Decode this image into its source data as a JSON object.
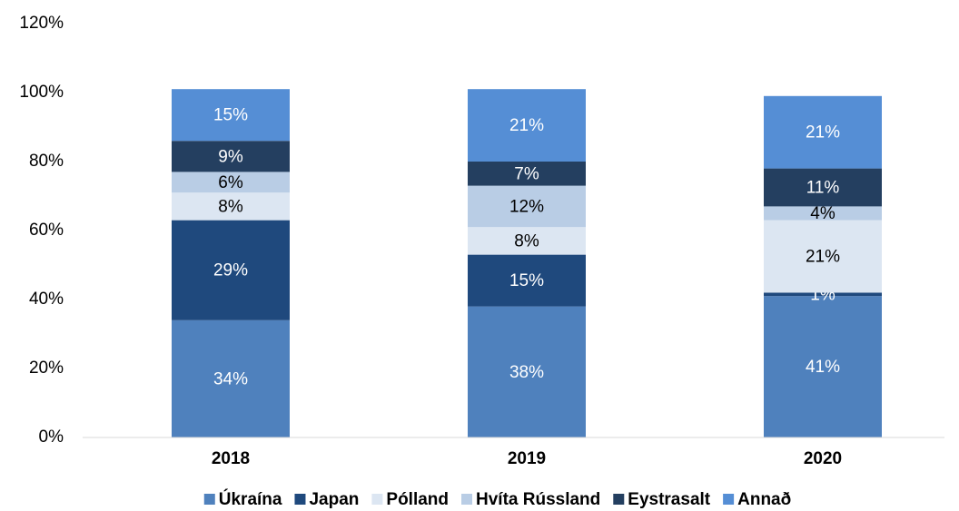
{
  "chart_data": {
    "type": "stacked_bar",
    "categories": [
      "2018",
      "2019",
      "2020"
    ],
    "series": [
      {
        "name": "Úkraína",
        "color": "#4f81bd",
        "values": [
          34,
          38,
          41
        ],
        "value_labels": [
          "34%",
          "38%",
          "41%"
        ]
      },
      {
        "name": "Japan",
        "color": "#1f497d",
        "values": [
          29,
          15,
          1
        ],
        "value_labels": [
          "29%",
          "15%",
          "1%"
        ]
      },
      {
        "name": "Pólland",
        "color": "#dce6f2",
        "values": [
          8,
          8,
          21
        ],
        "value_labels": [
          "8%",
          "8%",
          "21%"
        ]
      },
      {
        "name": "Hvíta Rússland",
        "color": "#b9cde5",
        "values": [
          6,
          12,
          4
        ],
        "value_labels": [
          "6%",
          "12%",
          "4%"
        ]
      },
      {
        "name": "Eystrasalt",
        "color": "#243f60",
        "values": [
          9,
          7,
          11
        ],
        "value_labels": [
          "9%",
          "7%",
          "11%"
        ]
      },
      {
        "name": "Annað",
        "color": "#558ed5",
        "values": [
          15,
          21,
          21
        ],
        "value_labels": [
          "15%",
          "21%",
          "21%"
        ]
      }
    ],
    "ylim": [
      0,
      120
    ],
    "yticks": [
      {
        "value": 0,
        "label": "0%"
      },
      {
        "value": 20,
        "label": "20%"
      },
      {
        "value": 40,
        "label": "40%"
      },
      {
        "value": 60,
        "label": "60%"
      },
      {
        "value": 80,
        "label": "80%"
      },
      {
        "value": 100,
        "label": "100%"
      },
      {
        "value": 120,
        "label": "120%"
      }
    ],
    "grid": false,
    "legend": "bottom"
  }
}
